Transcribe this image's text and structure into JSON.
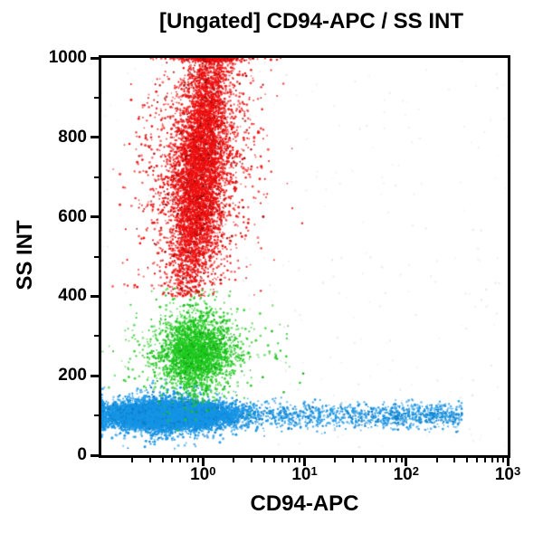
{
  "chart_data": {
    "type": "scatter",
    "title": "[Ungated] CD94-APC / SS INT",
    "xlabel": "CD94-APC",
    "ylabel": "SS INT",
    "x_scale": "log",
    "x_log_range": [
      -1,
      3
    ],
    "y_range": [
      0,
      1000
    ],
    "grid": "off",
    "legend": "none",
    "axis_color": "#000000",
    "background_color": "#ffffff",
    "x_axis": {
      "major_ticks": [
        {
          "base": "10",
          "exp": "0",
          "log": 0
        },
        {
          "base": "10",
          "exp": "1",
          "log": 1
        },
        {
          "base": "10",
          "exp": "2",
          "log": 2
        },
        {
          "base": "10",
          "exp": "3",
          "log": 3
        }
      ],
      "minor_tick_decades": [
        -1,
        0,
        1,
        2
      ],
      "minor_tick_multipliers": [
        2,
        3,
        4,
        5,
        6,
        7,
        8,
        9
      ]
    },
    "y_axis": {
      "major_ticks": [
        0,
        200,
        400,
        600,
        800,
        1000
      ],
      "minor_ticks": [
        100,
        300,
        500,
        700,
        900
      ]
    },
    "seed": 1337,
    "populations": [
      {
        "id": "background-noise",
        "kind": "uniform",
        "color": "#b8bcc2",
        "dark_color": "#b8bcc2",
        "dark_frac": 0,
        "count": 330,
        "x_log_range": [
          -1,
          3
        ],
        "ss_range": [
          10,
          1000
        ],
        "alpha": 0.3,
        "radius_min": 0.7,
        "radius_max": 1.2
      },
      {
        "id": "blue-cluster-tail",
        "kind": "band",
        "color": "#1695e6",
        "dark_color": "#0d7bc4",
        "dark_frac": 0.25,
        "count": 1400,
        "x_log_segments": [
          [
            -0.1,
            1.1,
            0.4
          ],
          [
            1.1,
            1.8,
            0.25
          ],
          [
            1.8,
            2.55,
            0.35
          ]
        ],
        "ss_mean": 100,
        "ss_sd": 16,
        "alpha": 0.8,
        "radius_min": 0.8,
        "radius_max": 1.5
      },
      {
        "id": "blue-cluster-core",
        "kind": "gauss",
        "color": "#1695e6",
        "dark_color": "#0d7bc4",
        "dark_frac": 0.12,
        "count": 9000,
        "x_log_mean": -0.35,
        "x_log_sd": 0.28,
        "x_log_tail_sd": 0.45,
        "x_tail_frac": 0.07,
        "ss_mean": 101,
        "ss_sd": 16,
        "ss_tail_sd": 32,
        "ss_tail_frac": 0.12,
        "ss_min": 15,
        "ss_max": 210,
        "ss_clip_pile": false,
        "tilt": 0,
        "alpha": 0.85,
        "radius_min": 0.9,
        "radius_max": 1.6
      },
      {
        "id": "green-cluster",
        "kind": "gauss",
        "color": "#1ecb1e",
        "dark_color": "#10a410",
        "dark_frac": 0.15,
        "count": 3000,
        "x_log_mean": -0.07,
        "x_log_sd": 0.17,
        "x_log_tail_sd": 0.34,
        "x_tail_frac": 0.2,
        "ss_mean": 258,
        "ss_sd": 50,
        "ss_tail_sd": 75,
        "ss_tail_frac": 0.12,
        "ss_min": 60,
        "ss_max": 420,
        "ss_clip_pile": false,
        "tilt": 0,
        "alpha": 0.8,
        "radius_min": 0.8,
        "radius_max": 1.5
      },
      {
        "id": "red-cluster",
        "kind": "gauss",
        "color": "#ee1010",
        "dark_color": "#9e0505",
        "dark_frac": 0.12,
        "count": 6800,
        "x_log_mean": -0.03,
        "x_log_sd": 0.12,
        "x_log_tail_sd": 0.3,
        "x_tail_frac": 0.25,
        "ss_mean": 720,
        "ss_sd": 170,
        "ss_tail_sd": 200,
        "ss_tail_frac": 0.1,
        "ss_min": 400,
        "ss_max": 1000,
        "ss_clip_pile": true,
        "tilt": 0.00035,
        "alpha": 0.85,
        "radius_min": 0.8,
        "radius_max": 1.5
      }
    ]
  }
}
